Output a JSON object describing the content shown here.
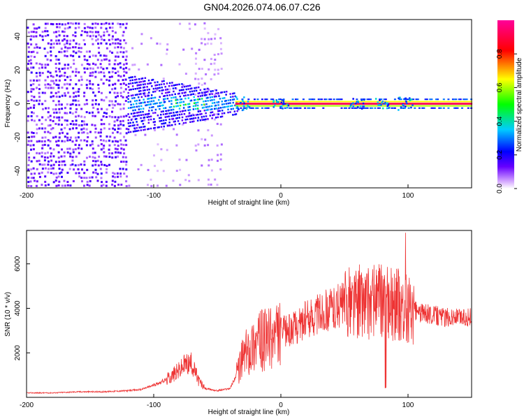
{
  "title": "GN04.2026.074.06.07.C26",
  "chart_data": [
    {
      "type": "heatmap",
      "xlabel": "Height of straight line (km)",
      "ylabel": "Frequency (Hz)",
      "xlim": [
        -200,
        150
      ],
      "ylim": [
        -50,
        50
      ],
      "x_ticks": [
        -200,
        -100,
        0,
        100
      ],
      "y_ticks": [
        -40,
        -20,
        0,
        20,
        40
      ],
      "colorbar": {
        "label": "Normalized spectral amplitude",
        "range": [
          0,
          1
        ],
        "ticks": [
          0.0,
          0.2,
          0.4,
          0.6,
          0.8
        ],
        "tick_labels": [
          "0.0",
          "0.2",
          "0.4",
          "0.6",
          "0.8"
        ],
        "colors": [
          "#ffffff",
          "#cc99ff",
          "#6600ff",
          "#0000ff",
          "#00ccff",
          "#00ff00",
          "#ffff00",
          "#ff0000",
          "#ff0099"
        ]
      },
      "regions": [
        {
          "x": [
            -200,
            -120
          ],
          "freq": [
            -50,
            50
          ],
          "level": 0.12,
          "description": "broadband noise"
        },
        {
          "x": [
            -120,
            -45
          ],
          "freq": [
            -15,
            15
          ],
          "level": 0.25,
          "description": "widening signal"
        },
        {
          "x": [
            -35,
            150
          ],
          "freq": [
            -2,
            2
          ],
          "level": 0.95,
          "description": "strong tone near 0 Hz"
        }
      ]
    },
    {
      "type": "line",
      "xlabel": "Height of straight line (km)",
      "ylabel": "SNR (10 * v/v)",
      "xlim": [
        -200,
        150
      ],
      "ylim": [
        0,
        7500
      ],
      "x_ticks": [
        -200,
        -100,
        0,
        100
      ],
      "y_ticks": [
        2000,
        4000,
        6000
      ],
      "color": "#ee3333",
      "series": [
        {
          "x": [
            -200,
            -180,
            -160,
            -140,
            -120,
            -110,
            -100,
            -90,
            -80,
            -75,
            -70,
            -65,
            -60,
            -50,
            -40,
            -35,
            -30,
            -25,
            -20,
            -10,
            0,
            10,
            20,
            30,
            40,
            50,
            60,
            70,
            80,
            90,
            100,
            110,
            120,
            130,
            140,
            150
          ],
          "y": [
            200,
            200,
            250,
            250,
            300,
            350,
            550,
            800,
            1200,
            1500,
            1500,
            800,
            400,
            300,
            400,
            1000,
            1800,
            2200,
            2500,
            2600,
            2900,
            3100,
            3500,
            3800,
            4000,
            4200,
            4300,
            4300,
            4300,
            4200,
            4000,
            3800,
            3700,
            3600,
            3600,
            3600
          ]
        }
      ]
    }
  ]
}
